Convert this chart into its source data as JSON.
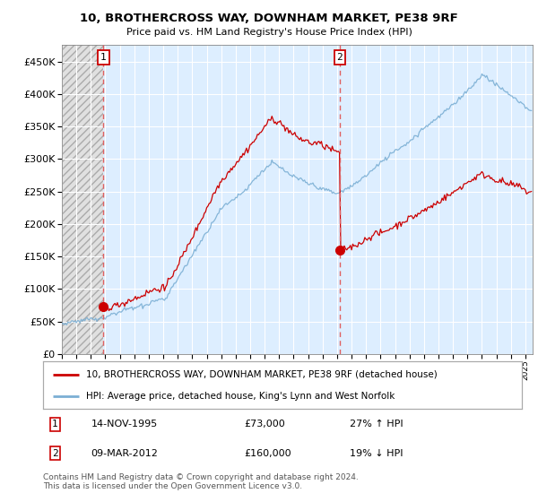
{
  "title": "10, BROTHERCROSS WAY, DOWNHAM MARKET, PE38 9RF",
  "subtitle": "Price paid vs. HM Land Registry's House Price Index (HPI)",
  "legend_line1": "10, BROTHERCROSS WAY, DOWNHAM MARKET, PE38 9RF (detached house)",
  "legend_line2": "HPI: Average price, detached house, King's Lynn and West Norfolk",
  "annotation1_label": "1",
  "annotation1_date": "14-NOV-1995",
  "annotation1_price": "£73,000",
  "annotation1_hpi": "27% ↑ HPI",
  "annotation2_label": "2",
  "annotation2_date": "09-MAR-2012",
  "annotation2_price": "£160,000",
  "annotation2_hpi": "19% ↓ HPI",
  "footer": "Contains HM Land Registry data © Crown copyright and database right 2024.\nThis data is licensed under the Open Government Licence v3.0.",
  "sale_color": "#cc0000",
  "hpi_color": "#7bafd4",
  "vline_color": "#e06060",
  "bg_blue": "#ddeeff",
  "bg_hatch": "#d8d8d8",
  "ylim": [
    0,
    475000
  ],
  "yticks": [
    0,
    50000,
    100000,
    150000,
    200000,
    250000,
    300000,
    350000,
    400000,
    450000
  ],
  "sale1_x": 1995.875,
  "sale1_y": 73000,
  "sale2_x": 2012.19,
  "sale2_y": 160000,
  "xmin": 1993.0,
  "xmax": 2025.5
}
